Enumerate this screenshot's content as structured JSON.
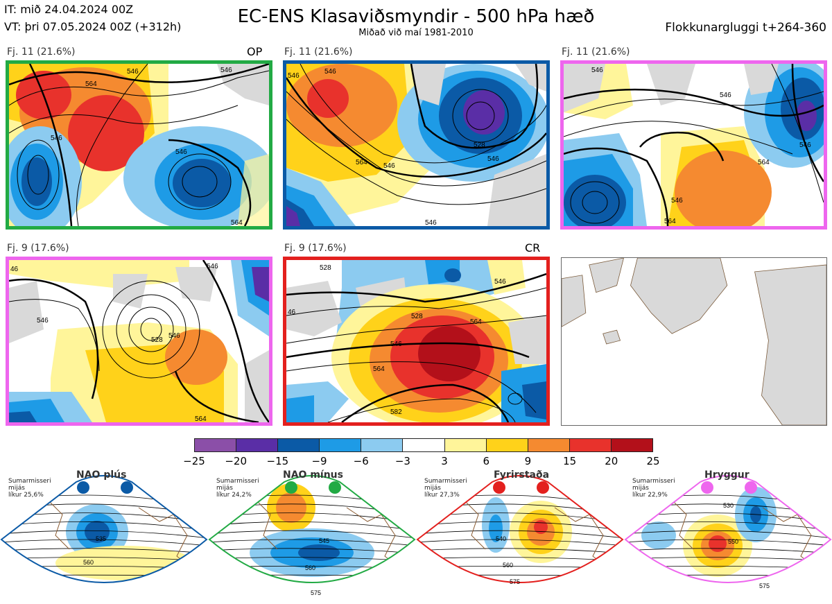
{
  "header": {
    "issue_time": "IT: mið 24.04.2024 00Z",
    "valid_time": "VT: þri 07.05.2024 00Z  (+312h)",
    "title": "EC-ENS Klasaviðsmyndir - 500 hPa hæð",
    "subtitle": "Miðað við maí 1981-2010",
    "window": "Flokkunargluggi t+264-360"
  },
  "panels": [
    {
      "label": "Fj. 11 (21.6%)",
      "tag": "OP",
      "border": "#22aa44"
    },
    {
      "label": "Fj. 11 (21.6%)",
      "tag": "",
      "border": "#0b5aa6"
    },
    {
      "label": "Fj. 11 (21.6%)",
      "tag": "",
      "border": "#ee66ee"
    },
    {
      "label": "Fj. 9 (17.6%)",
      "tag": "",
      "border": "#ee66ee"
    },
    {
      "label": "Fj. 9 (17.6%)",
      "tag": "CR",
      "border": "#e3201e"
    }
  ],
  "contour_labels": {
    "p1": [
      "564",
      "546",
      "546",
      "546",
      "564",
      "546",
      "564"
    ],
    "p2": [
      "546",
      "546",
      "546",
      "528",
      "546",
      "564",
      "546"
    ],
    "p3": [
      "546",
      "546",
      "546",
      "564",
      "546",
      "564"
    ],
    "p4": [
      "46",
      "546",
      "528",
      "546",
      "564",
      "546"
    ],
    "p5": [
      "528",
      "546",
      "46",
      "528",
      "546",
      "564",
      "564",
      "582"
    ]
  },
  "colorbar": {
    "ticks": [
      "−25",
      "−20",
      "−15",
      "−9",
      "−6",
      "−3",
      "3",
      "6",
      "9",
      "15",
      "20",
      "25"
    ],
    "colors": [
      "#8b4fa8",
      "#5a2ea6",
      "#0b5aa6",
      "#1e9be6",
      "#8ccbf0",
      "#ffffff",
      "#fff59a",
      "#ffd21a",
      "#f58a30",
      "#e8322c",
      "#b3101a"
    ]
  },
  "regimes": [
    {
      "name": "NAO plús",
      "info": [
        "Sumarmisseri",
        "mijás",
        "líkur 25,6%"
      ],
      "color": "#0b5aa6",
      "contours": [
        "535",
        "560"
      ]
    },
    {
      "name": "NAO mínus",
      "info": [
        "Sumarmisseri",
        "mijás",
        "líkur 24,2%"
      ],
      "color": "#22aa44",
      "contours": [
        "545",
        "560",
        "575"
      ]
    },
    {
      "name": "Fyrirstaða",
      "info": [
        "Sumarmisseri",
        "mijás",
        "líkur 27,3%"
      ],
      "color": "#e3201e",
      "contours": [
        "540",
        "560",
        "575"
      ]
    },
    {
      "name": "Hryggur",
      "info": [
        "Sumarmisseri",
        "mijás",
        "líkur 22,9%"
      ],
      "color": "#ee66ee",
      "contours": [
        "530",
        "550",
        "575"
      ]
    }
  ]
}
